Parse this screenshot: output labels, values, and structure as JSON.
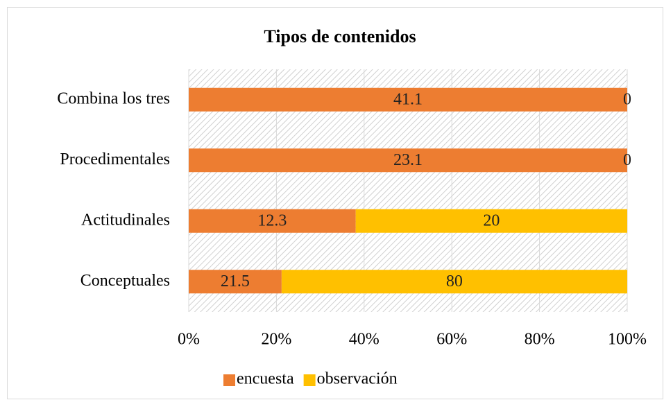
{
  "chart_data": {
    "type": "bar",
    "orientation": "horizontal",
    "stacked": "percent",
    "title": "Tipos de contenidos",
    "categories": [
      "Combina los tres",
      "Procedimentales",
      "Actitudinales",
      "Conceptuales"
    ],
    "series": [
      {
        "name": "encuesta",
        "color": "#ed7d31",
        "values": [
          41.1,
          23.1,
          12.3,
          21.5
        ]
      },
      {
        "name": "observación",
        "color": "#ffc000",
        "values": [
          0,
          0,
          20,
          80
        ]
      }
    ],
    "xlim": [
      0,
      100
    ],
    "xticks": [
      {
        "value": 0,
        "label": "0%"
      },
      {
        "value": 20,
        "label": "20%"
      },
      {
        "value": 40,
        "label": "40%"
      },
      {
        "value": 60,
        "label": "60%"
      },
      {
        "value": 80,
        "label": "80%"
      },
      {
        "value": 100,
        "label": "100%"
      }
    ],
    "grid": true,
    "legend": "bottom"
  }
}
